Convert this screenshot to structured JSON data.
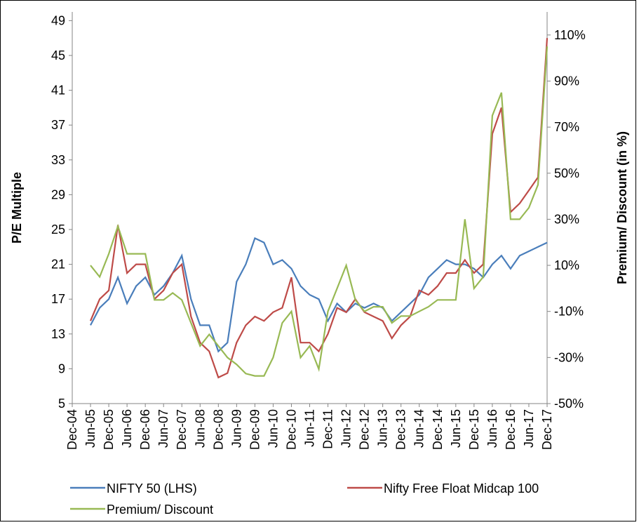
{
  "chart_data": {
    "type": "line",
    "y_label": "P/E Multiple",
    "y2_label": "Premium/ Discount (in %)",
    "categories": [
      "Dec-04",
      null,
      "Jun-05",
      null,
      "Dec-05",
      null,
      "Jun-06",
      null,
      "Dec-06",
      null,
      "Jun-07",
      null,
      "Dec-07",
      null,
      "Jun-08",
      null,
      "Dec-08",
      null,
      "Jun-09",
      null,
      "Dec-09",
      null,
      "Jun-10",
      null,
      "Dec-10",
      null,
      "Jun-11",
      null,
      "Dec-11",
      null,
      "Jun-12",
      null,
      "Dec-12",
      null,
      "Jun-13",
      null,
      "Dec-13",
      null,
      "Jun-14",
      null,
      "Dec-14",
      null,
      "Jun-15",
      null,
      "Dec-15",
      null,
      "Jun-16",
      null,
      "Dec-16",
      null,
      "Jun-17",
      null,
      "Dec-17"
    ],
    "series": [
      {
        "name": "NIFTY 50 (LHS)",
        "color": "#4a7ebb",
        "values": [
          null,
          null,
          14,
          16,
          17,
          19.5,
          16.5,
          18.5,
          19.5,
          17.5,
          18.5,
          20,
          22,
          17,
          14,
          14,
          11,
          12,
          19,
          21,
          24,
          23.5,
          21,
          21.5,
          20.5,
          18.5,
          17.5,
          17,
          14.5,
          16.5,
          15.5,
          16.5,
          16,
          16.5,
          16,
          14.5,
          15.5,
          16.5,
          17.5,
          19.5,
          20.5,
          21.5,
          21,
          21,
          20.5,
          19.5,
          21,
          22,
          20.5,
          22,
          22.5,
          23,
          23.5
        ]
      },
      {
        "name": "Nifty Free Float Midcap 100",
        "color": "#be4b48",
        "values": [
          null,
          null,
          14.5,
          17,
          18,
          25.5,
          20,
          21,
          21,
          17,
          18,
          20,
          21,
          15,
          12,
          11,
          8,
          8.5,
          12,
          14,
          15,
          14.5,
          15.5,
          16,
          19.5,
          12,
          12,
          11,
          13,
          16,
          15.5,
          17,
          15.5,
          15,
          14.5,
          12.5,
          14,
          15,
          18,
          17.5,
          18.5,
          20,
          20,
          21.5,
          20,
          21,
          36,
          39,
          27,
          28,
          29.5,
          31,
          47
        ]
      },
      {
        "name": "Premium/ Discount",
        "color": "#98b954",
        "axis": "y2",
        "values": [
          null,
          null,
          10,
          5,
          15,
          27,
          15,
          15,
          15,
          -5,
          -5,
          -2,
          -5,
          -15,
          -25,
          -20,
          -25,
          -30,
          -33,
          -37,
          -38,
          -38,
          -30,
          -15,
          -10,
          -30,
          -25,
          -35,
          -10,
          0,
          10,
          -5,
          -10,
          -8,
          -8,
          -15,
          -12,
          -12,
          -10,
          -8,
          -5,
          -5,
          -5,
          30,
          0,
          5,
          75,
          85,
          30,
          30,
          35,
          45,
          105
        ]
      }
    ],
    "ylim": [
      5,
      50
    ],
    "yticks": [
      5,
      9,
      13,
      17,
      21,
      25,
      29,
      33,
      37,
      41,
      45,
      49
    ],
    "y2lim": [
      -50,
      120
    ],
    "y2ticks": [
      {
        "value": -50,
        "label": "-50%"
      },
      {
        "value": -30,
        "label": "-30%"
      },
      {
        "value": -10,
        "label": "-10%"
      },
      {
        "value": 10,
        "label": "10%"
      },
      {
        "value": 30,
        "label": "30%"
      },
      {
        "value": 50,
        "label": "50%"
      },
      {
        "value": 70,
        "label": "70%"
      },
      {
        "value": 90,
        "label": "90%"
      },
      {
        "value": 110,
        "label": "110%"
      }
    ],
    "legend": "bottom"
  }
}
